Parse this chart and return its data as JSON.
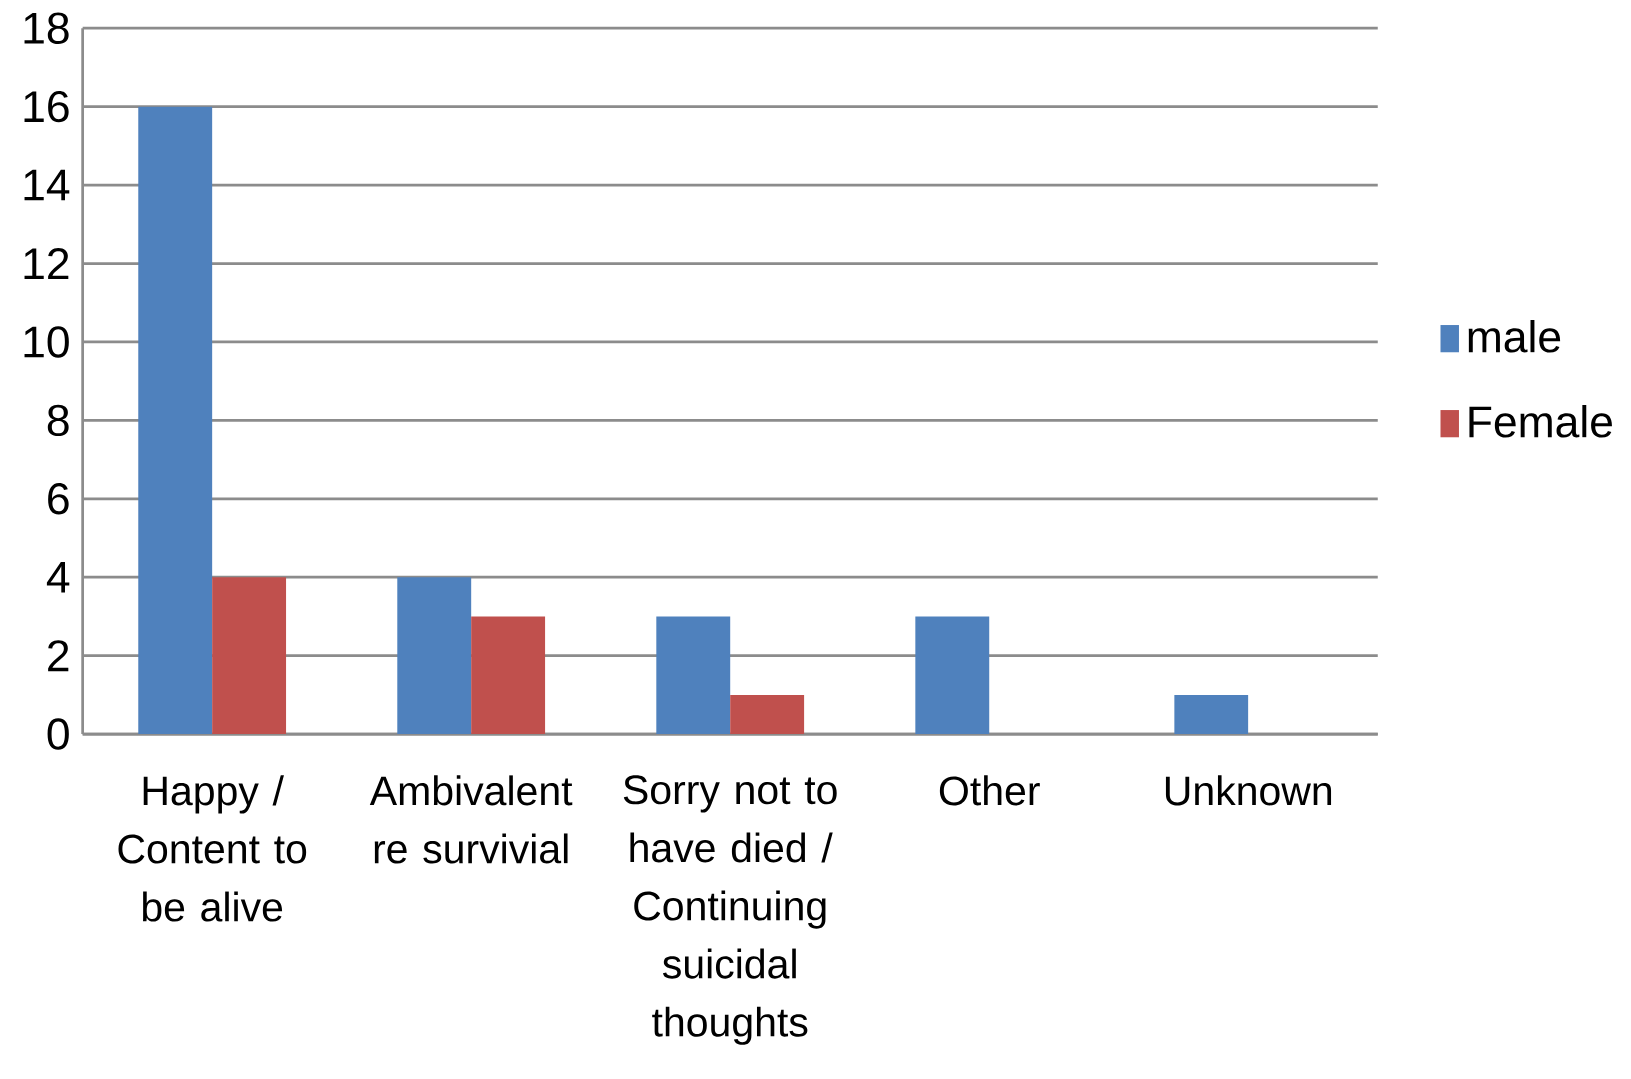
{
  "chart_data": {
    "type": "bar",
    "categories": [
      "Happy / Content to be alive",
      "Ambivalent re survivial",
      "Sorry not to have died / Continuing suicidal thoughts",
      "Other",
      "Unknown"
    ],
    "series": [
      {
        "name": "male",
        "color": "#4f81bd",
        "values": [
          16,
          4,
          3,
          3,
          1
        ]
      },
      {
        "name": "Female",
        "color": "#c0504d",
        "values": [
          4,
          3,
          1,
          0,
          0
        ]
      }
    ],
    "ylim": [
      0,
      18
    ],
    "yticks": [
      0,
      2,
      4,
      6,
      8,
      10,
      12,
      14,
      16,
      18
    ],
    "grid": "y",
    "legend": "right"
  }
}
